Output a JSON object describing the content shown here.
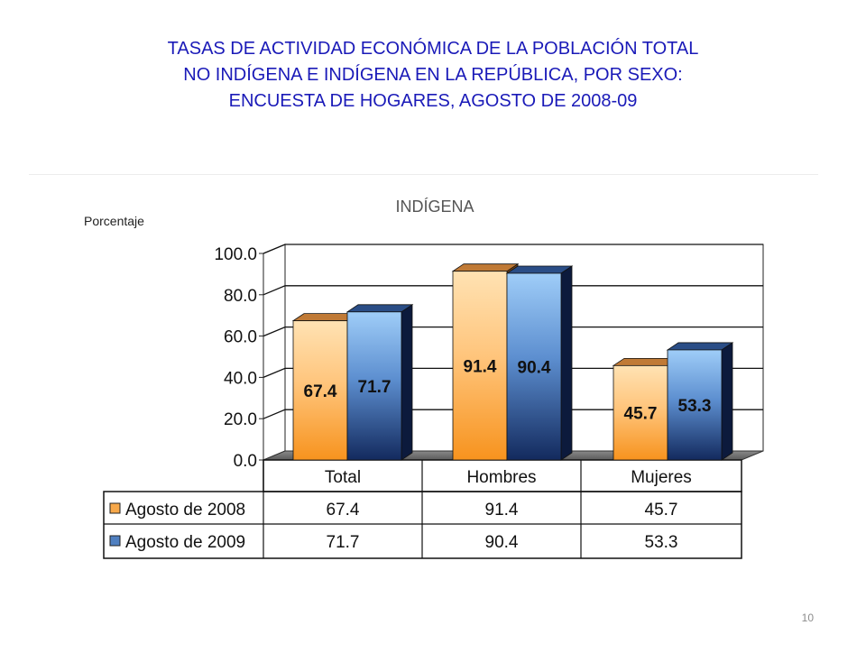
{
  "title_lines": [
    "TASAS DE ACTIVIDAD ECONÓMICA DE LA POBLACIÓN TOTAL",
    "NO INDÍGENA E INDÍGENA EN LA REPÚBLICA, POR SEXO:",
    "ENCUESTA DE HOGARES, AGOSTO DE 2008-09"
  ],
  "page_number": "10",
  "colors": {
    "title": "#1a1ab8",
    "series_2008": "#f59a2e",
    "series_2009": "#1f3f7a"
  },
  "chart_data": {
    "type": "bar",
    "title": "INDÍGENA",
    "ylabel": "Porcentaje",
    "xlabel": "",
    "categories": [
      "Total",
      "Hombres",
      "Mujeres"
    ],
    "series": [
      {
        "name": "Agosto de 2008",
        "values": [
          67.4,
          91.4,
          45.7
        ]
      },
      {
        "name": "Agosto de 2009",
        "values": [
          71.7,
          90.4,
          53.3
        ]
      }
    ],
    "ylim": [
      0,
      100
    ],
    "yticks": [
      "0.0",
      "20.0",
      "40.0",
      "60.0",
      "80.0",
      "100.0"
    ],
    "value_labels": [
      [
        "67.4",
        "91.4",
        "45.7"
      ],
      [
        "71.7",
        "90.4",
        "53.3"
      ]
    ],
    "grid": true,
    "legend": "data table below chart"
  }
}
